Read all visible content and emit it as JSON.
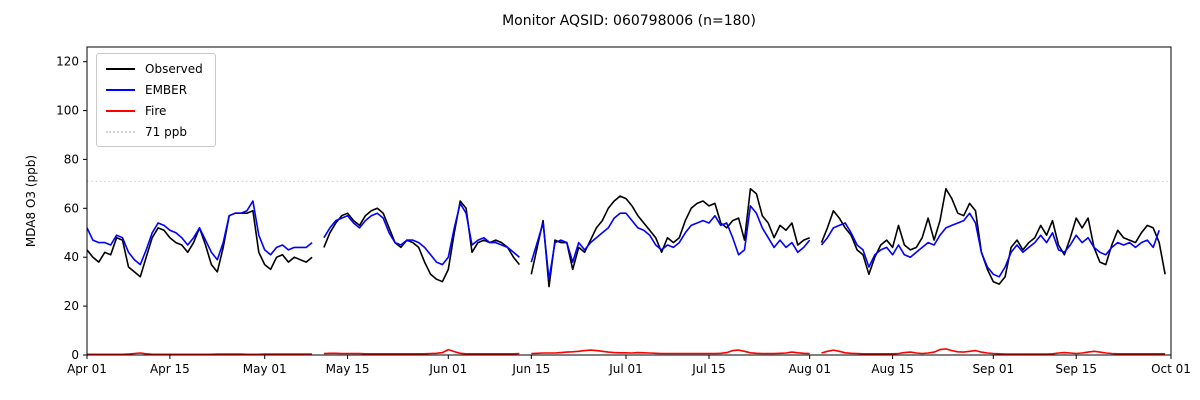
{
  "chart_data": {
    "type": "line",
    "title": "Monitor AQSID: 060798006 (n=180)",
    "ylabel": "MDA8 O3 (ppb)",
    "xlabel": "",
    "ylim": [
      0,
      126
    ],
    "yticks": [
      0,
      20,
      40,
      60,
      80,
      100,
      120
    ],
    "x_days_total": 183,
    "x_range": [
      "Apr 01",
      "Oct 01"
    ],
    "grid": false,
    "legend_position": "upper-left",
    "xticks": [
      {
        "label": "Apr 01",
        "day": 0
      },
      {
        "label": "Apr 15",
        "day": 14
      },
      {
        "label": "May 01",
        "day": 30
      },
      {
        "label": "May 15",
        "day": 44
      },
      {
        "label": "Jun 01",
        "day": 61
      },
      {
        "label": "Jun 15",
        "day": 75
      },
      {
        "label": "Jul 01",
        "day": 91
      },
      {
        "label": "Jul 15",
        "day": 105
      },
      {
        "label": "Aug 01",
        "day": 122
      },
      {
        "label": "Aug 15",
        "day": 136
      },
      {
        "label": "Sep 01",
        "day": 153
      },
      {
        "label": "Sep 15",
        "day": 167
      },
      {
        "label": "Oct 01",
        "day": 183
      }
    ],
    "threshold": {
      "value": 71,
      "label": "71 ppb",
      "color": "#d3d3d3",
      "style": "dotted"
    },
    "legend": [
      {
        "label": "Observed",
        "color": "#000000",
        "style": "solid"
      },
      {
        "label": "EMBER",
        "color": "#0000ff",
        "style": "solid"
      },
      {
        "label": "Fire",
        "color": "#ff0000",
        "style": "solid"
      },
      {
        "label": "71 ppb",
        "color": "#d3d3d3",
        "style": "dotted"
      }
    ],
    "series": [
      {
        "name": "Observed",
        "color": "#000000",
        "values": [
          43,
          40,
          38,
          42,
          41,
          48,
          47,
          36,
          34,
          32,
          40,
          48,
          52,
          51,
          48,
          46,
          45,
          42,
          46,
          52,
          45,
          37,
          34,
          44,
          57,
          58,
          58,
          58,
          59,
          42,
          37,
          35,
          40,
          41,
          38,
          40,
          39,
          38,
          40,
          null,
          44,
          50,
          54,
          57,
          58,
          55,
          53,
          57,
          59,
          60,
          58,
          52,
          46,
          44,
          47,
          46,
          44,
          38,
          33,
          31,
          30,
          35,
          50,
          63,
          60,
          42,
          46,
          47,
          46,
          47,
          46,
          44,
          40,
          37,
          null,
          33,
          44,
          55,
          28,
          47,
          46,
          46,
          35,
          44,
          42,
          47,
          52,
          55,
          60,
          63,
          65,
          64,
          61,
          57,
          54,
          51,
          48,
          42,
          48,
          46,
          48,
          55,
          60,
          62,
          63,
          61,
          62,
          54,
          52,
          55,
          56,
          47,
          68,
          66,
          57,
          54,
          48,
          53,
          51,
          54,
          45,
          47,
          48,
          null,
          46,
          52,
          59,
          56,
          52,
          49,
          43,
          41,
          33,
          40,
          45,
          47,
          44,
          53,
          45,
          43,
          44,
          48,
          56,
          47,
          55,
          68,
          64,
          58,
          57,
          62,
          59,
          42,
          35,
          30,
          29,
          32,
          44,
          47,
          43,
          46,
          48,
          53,
          49,
          55,
          45,
          41,
          48,
          56,
          52,
          56,
          44,
          38,
          37,
          45,
          51,
          48,
          47,
          46,
          50,
          53,
          52,
          46,
          33
        ]
      },
      {
        "name": "EMBER",
        "color": "#0000ff",
        "values": [
          52,
          47,
          46,
          46,
          45,
          49,
          48,
          42,
          39,
          37,
          43,
          50,
          54,
          53,
          51,
          50,
          48,
          45,
          48,
          52,
          47,
          42,
          39,
          46,
          57,
          58,
          58,
          59,
          63,
          49,
          43,
          41,
          44,
          45,
          43,
          44,
          44,
          44,
          46,
          null,
          48,
          52,
          55,
          56,
          57,
          54,
          52,
          55,
          57,
          58,
          56,
          50,
          46,
          45,
          47,
          47,
          46,
          44,
          41,
          38,
          37,
          40,
          52,
          62,
          58,
          45,
          47,
          48,
          46,
          46,
          45,
          44,
          42,
          40,
          null,
          38,
          46,
          54,
          31,
          46,
          47,
          46,
          38,
          46,
          43,
          46,
          48,
          50,
          52,
          56,
          58,
          58,
          55,
          52,
          51,
          49,
          45,
          43,
          45,
          44,
          46,
          50,
          53,
          54,
          55,
          54,
          57,
          53,
          54,
          48,
          41,
          43,
          61,
          58,
          52,
          48,
          44,
          47,
          44,
          46,
          42,
          44,
          47,
          null,
          45,
          48,
          52,
          53,
          54,
          50,
          45,
          43,
          36,
          41,
          43,
          44,
          41,
          45,
          41,
          40,
          42,
          44,
          46,
          45,
          49,
          52,
          53,
          54,
          55,
          58,
          54,
          42,
          36,
          33,
          32,
          36,
          42,
          45,
          42,
          44,
          46,
          49,
          46,
          50,
          43,
          42,
          45,
          49,
          46,
          48,
          44,
          42,
          41,
          44,
          46,
          45,
          46,
          44,
          46,
          47,
          44,
          51,
          null
        ]
      },
      {
        "name": "Fire",
        "color": "#ff0000",
        "values": [
          0.3,
          0.3,
          0.3,
          0.3,
          0.3,
          0.3,
          0.3,
          0.4,
          0.6,
          0.8,
          0.5,
          0.3,
          0.3,
          0.3,
          0.3,
          0.3,
          0.3,
          0.3,
          0.3,
          0.3,
          0.3,
          0.3,
          0.4,
          0.4,
          0.4,
          0.4,
          0.4,
          0.3,
          0.3,
          0.3,
          0.4,
          0.4,
          0.4,
          0.4,
          0.4,
          0.4,
          0.4,
          0.4,
          0.4,
          null,
          0.6,
          0.7,
          0.7,
          0.6,
          0.6,
          0.6,
          0.6,
          0.5,
          0.5,
          0.5,
          0.5,
          0.5,
          0.5,
          0.5,
          0.5,
          0.5,
          0.5,
          0.5,
          0.6,
          0.7,
          1.0,
          2.2,
          1.4,
          0.7,
          0.5,
          0.5,
          0.5,
          0.5,
          0.5,
          0.5,
          0.5,
          0.5,
          0.5,
          0.6,
          null,
          0.6,
          0.7,
          0.8,
          0.8,
          0.8,
          1.0,
          1.2,
          1.3,
          1.5,
          1.8,
          2.0,
          1.8,
          1.5,
          1.2,
          1.0,
          0.9,
          0.9,
          0.8,
          1.0,
          0.9,
          0.8,
          0.7,
          0.6,
          0.6,
          0.6,
          0.6,
          0.6,
          0.6,
          0.6,
          0.6,
          0.6,
          0.6,
          0.7,
          1.0,
          1.8,
          2.0,
          1.5,
          0.9,
          0.7,
          0.6,
          0.6,
          0.6,
          0.7,
          0.8,
          1.2,
          0.9,
          0.7,
          0.6,
          null,
          0.8,
          1.5,
          2.0,
          1.5,
          0.9,
          0.7,
          0.6,
          0.5,
          0.5,
          0.5,
          0.5,
          0.5,
          0.5,
          0.6,
          1.0,
          1.2,
          0.8,
          0.6,
          0.8,
          1.2,
          2.2,
          2.5,
          1.8,
          1.3,
          1.2,
          1.5,
          1.8,
          1.2,
          0.8,
          0.6,
          0.5,
          0.4,
          0.4,
          0.4,
          0.4,
          0.4,
          0.4,
          0.4,
          0.4,
          0.5,
          0.8,
          1.0,
          0.8,
          0.6,
          0.8,
          1.2,
          1.5,
          1.2,
          0.8,
          0.6,
          0.5,
          0.5,
          0.5,
          0.5,
          0.5,
          0.5,
          0.5,
          0.5,
          0.5
        ]
      }
    ]
  }
}
